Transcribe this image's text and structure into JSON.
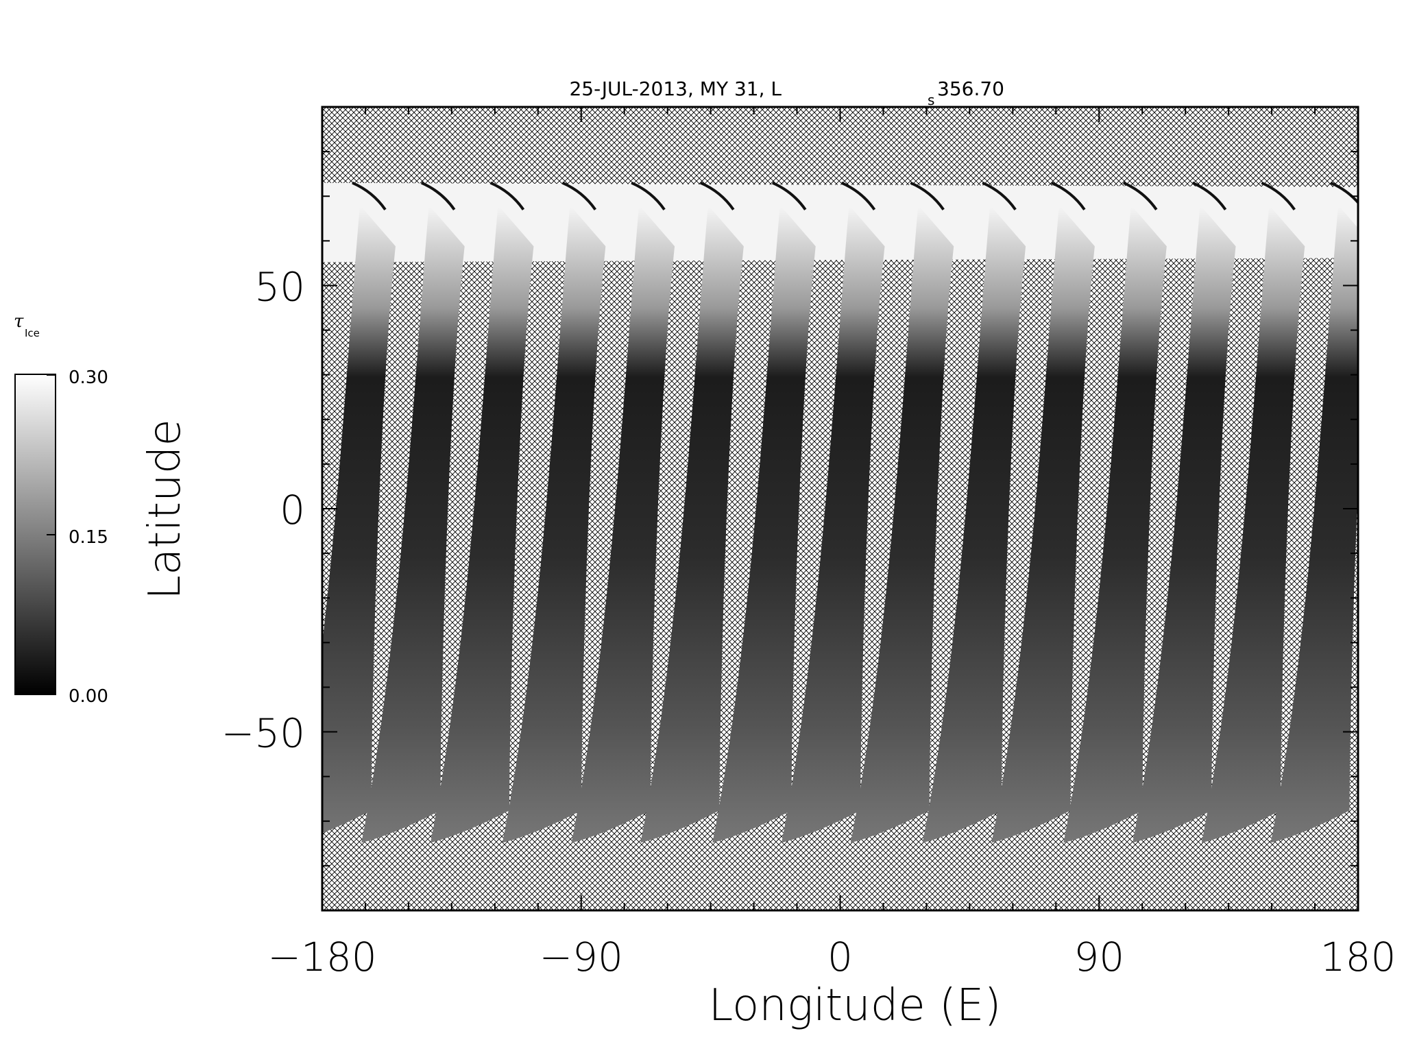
{
  "chart_data": {
    "type": "heatmap",
    "title": "25-JUL-2013, MY 31,  L",
    "title_sub": "s",
    "title_tail": " 356.70",
    "xlabel": "Longitude (E)",
    "ylabel": "Latitude",
    "xlim": [
      -180,
      180
    ],
    "ylim": [
      -90,
      90
    ],
    "x_ticks": [
      -180,
      -90,
      0,
      90,
      180
    ],
    "x_tick_labels": [
      "−180",
      "−90",
      "0",
      "90",
      "180"
    ],
    "y_ticks": [
      -50,
      0,
      50
    ],
    "y_tick_labels": [
      "−50",
      "0",
      "50"
    ],
    "colorbar": {
      "label": "τ",
      "label_sub": "Ice",
      "range": [
        0.0,
        0.3
      ],
      "tick_labels": [
        "0.30",
        "0.15",
        "0.00"
      ],
      "colormap": "grayscale"
    },
    "swath_longitudes_equator": [
      -170,
      -146,
      -122,
      -97,
      -73,
      -49,
      -24,
      0,
      24,
      49,
      73,
      98,
      122,
      146,
      170
    ],
    "no_data_pattern": "crosshatch",
    "cap_value_north": 0.3
  },
  "colors": {
    "axis": "#000000",
    "hatch": "#000000",
    "cap": "#f4f4f4",
    "swath_dark": "#1a1a1a",
    "swath_mid": "#4a4a4a"
  }
}
